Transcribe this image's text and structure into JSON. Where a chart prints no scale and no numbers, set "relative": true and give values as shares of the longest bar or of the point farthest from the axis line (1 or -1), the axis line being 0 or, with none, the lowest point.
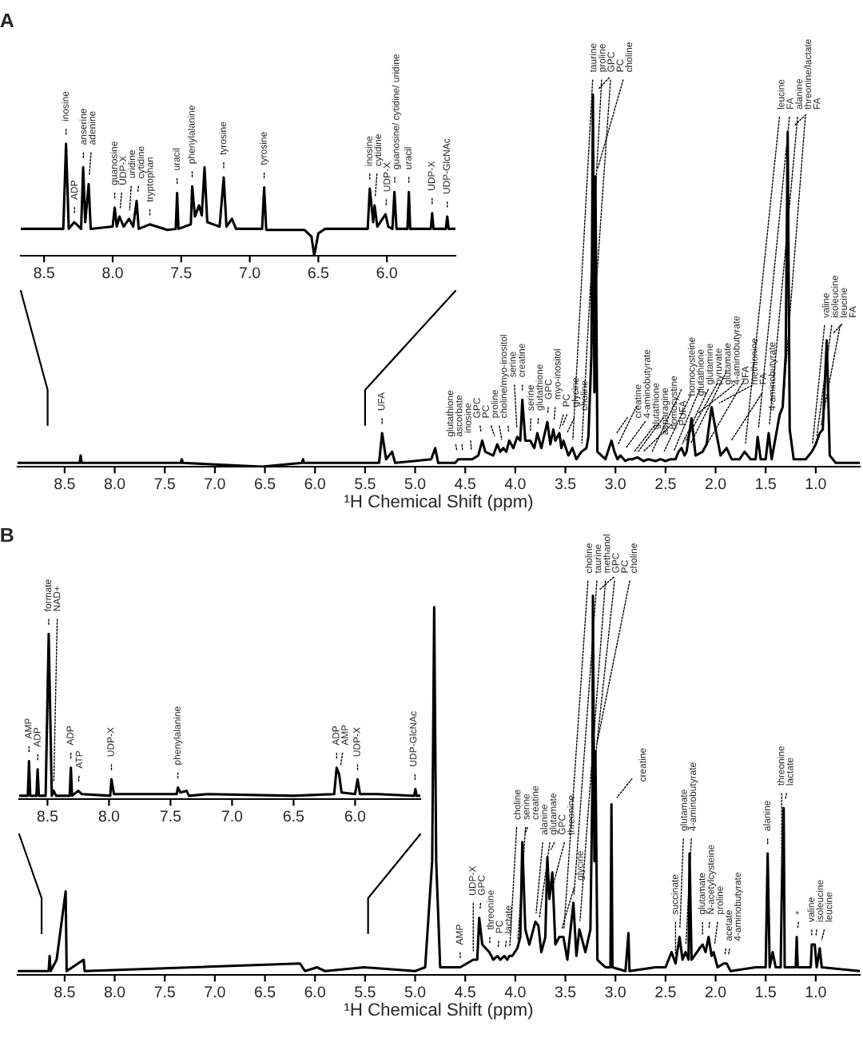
{
  "chart_data": [
    {
      "type": "line",
      "relative": true,
      "xlim": [
        8.67,
        5.5
      ],
      "xticks": [
        8.5,
        {
          "value": 8,
          "label": "8.0"
        },
        7.5,
        {
          "value": 7,
          "label": "7.0"
        },
        6.5,
        {
          "value": 6,
          "label": "6.0"
        }
      ],
      "series": [
        {
          "color": "#000000",
          "x": [
            8.67,
            8.36,
            8.34,
            8.32,
            8.28,
            8.23,
            8.215,
            8.2,
            8.175,
            8.16,
            8.0,
            7.985,
            7.97,
            7.95,
            7.92,
            7.88,
            7.85,
            7.825,
            7.81,
            7.73,
            7.6,
            7.54,
            7.53,
            7.52,
            7.43,
            7.42,
            7.4,
            7.37,
            7.35,
            7.33,
            7.31,
            7.22,
            7.19,
            7.17,
            7.13,
            7.1,
            6.91,
            6.895,
            6.88,
            6.6,
            6.55,
            6.53,
            6.5,
            6.45,
            6.14,
            6.125,
            6.1,
            6.09,
            6.07,
            6.01,
            5.99,
            5.96,
            5.945,
            5.93,
            5.85,
            5.84,
            5.83,
            5.68,
            5.67,
            5.66,
            5.57,
            5.56,
            5.55,
            5.5
          ],
          "values": [
            0.24,
            0.24,
            1.0,
            0.24,
            0.3,
            0.24,
            0.79,
            0.3,
            0.64,
            0.24,
            0.26,
            0.43,
            0.26,
            0.35,
            0.26,
            0.33,
            0.26,
            0.49,
            0.24,
            0.28,
            0.23,
            0.24,
            0.56,
            0.24,
            0.28,
            0.62,
            0.35,
            0.45,
            0.36,
            0.79,
            0.3,
            0.26,
            0.7,
            0.26,
            0.33,
            0.24,
            0.24,
            0.61,
            0.23,
            0.23,
            0.17,
            0.0,
            0.2,
            0.24,
            0.24,
            0.6,
            0.3,
            0.45,
            0.26,
            0.37,
            0.26,
            0.24,
            0.57,
            0.24,
            0.24,
            0.57,
            0.24,
            0.24,
            0.38,
            0.24,
            0.24,
            0.35,
            0.24,
            0.24
          ]
        }
      ],
      "annotations": [
        {
          "text": "inosine",
          "x": 8.34,
          "y": 1.0
        },
        {
          "text": "ADP",
          "x": 8.28,
          "y": 0.3
        },
        {
          "text": "anserine",
          "x": 8.215,
          "y": 0.79
        },
        {
          "text": "adenine",
          "x": 8.175,
          "y": 0.64
        },
        {
          "text": "guanosine",
          "x": 7.985,
          "y": 0.43
        },
        {
          "text": "UDP-X",
          "x": 7.95,
          "y": 0.35
        },
        {
          "text": "uridine",
          "x": 7.88,
          "y": 0.33
        },
        {
          "text": "cytidine",
          "x": 7.825,
          "y": 0.49
        },
        {
          "text": "tryptophan",
          "x": 7.73,
          "y": 0.28
        },
        {
          "text": "uracil",
          "x": 7.53,
          "y": 0.56
        },
        {
          "text": "phenylalanine",
          "x": 7.42,
          "y": 0.62
        },
        {
          "text": "tyrosine",
          "x": 7.19,
          "y": 0.7
        },
        {
          "text": "tyrosine",
          "x": 6.895,
          "y": 0.61
        },
        {
          "text": "inosine",
          "x": 6.125,
          "y": 0.6
        },
        {
          "text": "cytidine",
          "x": 6.09,
          "y": 0.45
        },
        {
          "text": "UDP-X",
          "x": 6.01,
          "y": 0.37
        },
        {
          "text": "guanosine/ cytidine/ uridine",
          "x": 5.945,
          "y": 0.57
        },
        {
          "text": "uracil",
          "x": 5.84,
          "y": 0.57
        },
        {
          "text": "UDP-X",
          "x": 5.67,
          "y": 0.38
        },
        {
          "text": "UDP-GlcNAc",
          "x": 5.56,
          "y": 0.35
        }
      ]
    },
    {
      "type": "line",
      "relative": true,
      "title": "A",
      "xlabel": "¹H Chemical Shift (ppm)",
      "xlim": [
        8.97,
        0.56
      ],
      "xticks": [
        8.5,
        {
          "value": 8,
          "label": "8.0"
        },
        7.5,
        {
          "value": 7,
          "label": "7.0"
        },
        6.5,
        {
          "value": 6,
          "label": "6.0"
        },
        5.5,
        {
          "value": 5,
          "label": "5.0"
        },
        4.5,
        {
          "value": 4,
          "label": "4.0"
        },
        3.5,
        {
          "value": 3,
          "label": "3.0"
        },
        2.5,
        {
          "value": 2,
          "label": "2.0"
        },
        1.5,
        {
          "value": 1,
          "label": "1.0"
        }
      ],
      "series": [
        {
          "color": "#000000",
          "x": [
            8.97,
            8.35,
            8.34,
            8.33,
            7.34,
            7.33,
            7.32,
            6.53,
            6.13,
            6.12,
            6.11,
            5.36,
            5.33,
            5.29,
            5.23,
            5.2,
            4.84,
            4.8,
            4.77,
            4.6,
            4.57,
            4.52,
            4.43,
            4.37,
            4.33,
            4.3,
            4.22,
            4.18,
            4.15,
            4.12,
            4.09,
            4.06,
            4.02,
            3.98,
            3.95,
            3.93,
            3.9,
            3.85,
            3.81,
            3.78,
            3.74,
            3.68,
            3.65,
            3.62,
            3.6,
            3.58,
            3.56,
            3.54,
            3.52,
            3.47,
            3.43,
            3.39,
            3.34,
            3.29,
            3.27,
            3.24,
            3.225,
            3.21,
            3.2,
            3.18,
            3.1,
            3.04,
            3.01,
            2.98,
            2.95,
            2.9,
            2.87,
            2.83,
            2.78,
            2.72,
            2.67,
            2.6,
            2.55,
            2.5,
            2.45,
            2.4,
            2.37,
            2.34,
            2.31,
            2.29,
            2.24,
            2.2,
            2.13,
            2.09,
            2.04,
            2.0,
            1.95,
            1.89,
            1.84,
            1.76,
            1.71,
            1.65,
            1.6,
            1.58,
            1.55,
            1.5,
            1.47,
            1.44,
            1.36,
            1.33,
            1.3,
            1.28,
            1.26,
            1.22,
            1.1,
            1.04,
            1.0,
            0.96,
            0.93,
            0.89,
            0.86,
            0.8,
            0.56
          ],
          "values": [
            0.01,
            0.01,
            0.03,
            0.01,
            0.01,
            0.02,
            0.01,
            0,
            0.01,
            0.02,
            0.01,
            0.01,
            0.09,
            0.02,
            0.04,
            0.01,
            0.02,
            0.05,
            0.01,
            0.01,
            0.02,
            0.02,
            0.02,
            0.03,
            0.07,
            0.04,
            0.03,
            0.06,
            0.04,
            0.05,
            0.04,
            0.07,
            0.05,
            0.08,
            0.07,
            0.18,
            0.07,
            0.07,
            0.05,
            0.09,
            0.05,
            0.12,
            0.06,
            0.1,
            0.07,
            0.08,
            0.09,
            0.05,
            0.07,
            0.03,
            0.05,
            0.02,
            0.04,
            0.05,
            0.08,
            0.3,
            1.0,
            0.2,
            0.78,
            0.04,
            0.02,
            0.07,
            0.04,
            0.02,
            0.03,
            0.015,
            0.02,
            0.02,
            0.025,
            0.015,
            0.02,
            0.015,
            0.02,
            0.015,
            0.02,
            0.02,
            0.04,
            0.05,
            0.03,
            0.04,
            0.13,
            0.03,
            0.04,
            0.06,
            0.16,
            0.1,
            0.03,
            0.05,
            0.02,
            0.02,
            0.04,
            0.02,
            0.02,
            0.08,
            0.02,
            0.02,
            0.09,
            0.02,
            0.14,
            0.16,
            0.3,
            0.9,
            0.1,
            0.02,
            0.02,
            0.04,
            0.06,
            0.09,
            0.1,
            0.34,
            0.03,
            0.01,
            0.01
          ]
        }
      ],
      "annotations": [
        {
          "text": "UFA",
          "x": 5.33,
          "y": 0.09
        },
        {
          "text": "glutathione",
          "x": 4.57,
          "y": 0.02
        },
        {
          "text": "ascorbate",
          "x": 4.52,
          "y": 0.02
        },
        {
          "text": "inosine",
          "x": 4.43,
          "y": 0.02
        },
        {
          "text": "GPC",
          "x": 4.33,
          "y": 0.07
        },
        {
          "text": "PC",
          "x": 4.18,
          "y": 0.06
        },
        {
          "text": "proline",
          "x": 4.12,
          "y": 0.05
        },
        {
          "text": "choline/myo-inositol",
          "x": 4.06,
          "y": 0.07
        },
        {
          "text": "serine",
          "x": 3.98,
          "y": 0.08
        },
        {
          "text": "creatine",
          "x": 3.93,
          "y": 0.18
        },
        {
          "text": "serine",
          "x": 3.85,
          "y": 0.07
        },
        {
          "text": "glutathione",
          "x": 3.78,
          "y": 0.09
        },
        {
          "text": "GPC",
          "x": 3.68,
          "y": 0.12
        },
        {
          "text": "myo-inositol",
          "x": 3.62,
          "y": 0.1
        },
        {
          "text": "PC",
          "x": 3.58,
          "y": 0.08
        },
        {
          "text": "glycine",
          "x": 3.56,
          "y": 0.09
        },
        {
          "text": "choline",
          "x": 3.52,
          "y": 0.07
        },
        {
          "text": "taurine",
          "x": 3.43,
          "y": 0.05
        },
        {
          "text": "proline",
          "x": 3.34,
          "y": 0.04
        },
        {
          "text": "GPC",
          "x": 3.24,
          "y": 0.3
        },
        {
          "text": "PC",
          "x": 3.225,
          "y": 1.0
        },
        {
          "text": "choline",
          "x": 3.2,
          "y": 0.78
        },
        {
          "text": "creatine",
          "x": 3.04,
          "y": 0.07
        },
        {
          "text": "4-aminobutyrate",
          "x": 3.01,
          "y": 0.04
        },
        {
          "text": "glutathione",
          "x": 2.95,
          "y": 0.03
        },
        {
          "text": "asparagine",
          "x": 2.87,
          "y": 0.02
        },
        {
          "text": "homocystine",
          "x": 2.83,
          "y": 0.02
        },
        {
          "text": "PUFA",
          "x": 2.78,
          "y": 0.025
        },
        {
          "text": "homocysteine",
          "x": 2.67,
          "y": 0.02
        },
        {
          "text": "glutathione",
          "x": 2.55,
          "y": 0.02
        },
        {
          "text": "glutamine",
          "x": 2.45,
          "y": 0.02
        },
        {
          "text": "pyruvate",
          "x": 2.37,
          "y": 0.04
        },
        {
          "text": "glutamate",
          "x": 2.34,
          "y": 0.05
        },
        {
          "text": "4-aminobutyrate",
          "x": 2.29,
          "y": 0.04
        },
        {
          "text": "UFA",
          "x": 2.24,
          "y": 0.13
        },
        {
          "text": "methionine",
          "x": 2.13,
          "y": 0.04
        },
        {
          "text": "FA",
          "x": 2.04,
          "y": 0.16
        },
        {
          "text": "4-aminobutyrate",
          "x": 1.89,
          "y": 0.05
        },
        {
          "text": "leucine",
          "x": 1.71,
          "y": 0.04
        },
        {
          "text": "FA",
          "x": 1.58,
          "y": 0.08
        },
        {
          "text": "alanine",
          "x": 1.47,
          "y": 0.09
        },
        {
          "text": "threonine/lactate",
          "x": 1.33,
          "y": 0.16
        },
        {
          "text": "FA",
          "x": 1.28,
          "y": 0.9
        },
        {
          "text": "valine",
          "x": 1.04,
          "y": 0.04
        },
        {
          "text": "isoleucine",
          "x": 1.0,
          "y": 0.06
        },
        {
          "text": "leucine",
          "x": 0.96,
          "y": 0.09
        },
        {
          "text": "FA",
          "x": 0.89,
          "y": 0.34
        }
      ]
    },
    {
      "type": "line",
      "relative": true,
      "xlim": [
        8.73,
        5.47
      ],
      "xticks": [
        8.5,
        {
          "value": 8,
          "label": "8.0"
        },
        7.5,
        {
          "value": 7,
          "label": "7.0"
        },
        6.5,
        {
          "value": 6,
          "label": "6.0"
        }
      ],
      "series": [
        {
          "color": "#000000",
          "x": [
            8.73,
            8.66,
            8.65,
            8.64,
            8.59,
            8.58,
            8.57,
            8.515,
            8.49,
            8.465,
            8.45,
            8.43,
            8.32,
            8.31,
            8.3,
            8.25,
            8.22,
            7.99,
            7.98,
            7.96,
            7.45,
            7.44,
            7.42,
            7.37,
            7.35,
            7.2,
            6.5,
            6.17,
            6.15,
            6.13,
            6.11,
            6.0,
            5.98,
            5.96,
            5.82,
            5.52,
            5.51,
            5.5,
            5.47
          ],
          "values": [
            0.02,
            0.02,
            0.23,
            0.02,
            0.02,
            0.18,
            0.02,
            0.02,
            1.0,
            0.02,
            0.05,
            0.02,
            0.02,
            0.19,
            0.02,
            0.05,
            0.03,
            0.02,
            0.12,
            0.03,
            0.03,
            0.07,
            0.04,
            0.05,
            0.02,
            0.03,
            0.02,
            0.03,
            0.19,
            0.15,
            0.04,
            0.03,
            0.12,
            0.03,
            0.03,
            0.02,
            0.06,
            0.02,
            0.02
          ]
        }
      ],
      "annotations": [
        {
          "text": "AMP",
          "x": 8.65,
          "y": 0.23
        },
        {
          "text": "ADP",
          "x": 8.58,
          "y": 0.18
        },
        {
          "text": "formate",
          "x": 8.49,
          "y": 1.0
        },
        {
          "text": "NAD+",
          "x": 8.45,
          "y": 0.05
        },
        {
          "text": "ADP",
          "x": 8.31,
          "y": 0.19
        },
        {
          "text": "ATP",
          "x": 8.25,
          "y": 0.05
        },
        {
          "text": "UDP-X",
          "x": 7.98,
          "y": 0.12
        },
        {
          "text": "phenylalanine",
          "x": 7.44,
          "y": 0.07
        },
        {
          "text": "ADP",
          "x": 6.15,
          "y": 0.19
        },
        {
          "text": "AMP",
          "x": 6.13,
          "y": 0.15
        },
        {
          "text": "UDP-X",
          "x": 5.98,
          "y": 0.12
        },
        {
          "text": "UDP-GlcNAc",
          "x": 5.51,
          "y": 0.06
        }
      ]
    },
    {
      "type": "line",
      "relative": true,
      "title": "B",
      "xlabel": "¹H Chemical Shift (ppm)",
      "xlim": [
        8.97,
        0.56
      ],
      "xticks": [
        8.5,
        {
          "value": 8,
          "label": "8.0"
        },
        7.5,
        {
          "value": 7,
          "label": "7.0"
        },
        6.5,
        {
          "value": 6,
          "label": "6.0"
        },
        5.5,
        {
          "value": 5,
          "label": "5.0"
        },
        4.5,
        {
          "value": 4,
          "label": "4.0"
        },
        3.5,
        {
          "value": 3,
          "label": "3.0"
        },
        2.5,
        {
          "value": 2,
          "label": "2.0"
        },
        1.5,
        {
          "value": 1,
          "label": "1.0"
        }
      ],
      "series": [
        {
          "color": "#000000",
          "x": [
            8.97,
            8.66,
            8.65,
            8.64,
            8.58,
            8.49,
            8.48,
            8.31,
            8.3,
            6.15,
            6.1,
            5.98,
            5.9,
            5.51,
            5.0,
            4.9,
            4.83,
            4.81,
            4.79,
            4.75,
            4.6,
            4.55,
            4.42,
            4.38,
            4.36,
            4.33,
            4.26,
            4.22,
            4.18,
            4.15,
            4.11,
            4.08,
            4.06,
            4.03,
            3.98,
            3.95,
            3.93,
            3.9,
            3.86,
            3.8,
            3.77,
            3.74,
            3.7,
            3.68,
            3.66,
            3.63,
            3.6,
            3.56,
            3.52,
            3.48,
            3.42,
            3.39,
            3.36,
            3.3,
            3.25,
            3.23,
            3.225,
            3.21,
            3.2,
            3.18,
            3.1,
            3.05,
            3.04,
            3.03,
            2.9,
            2.87,
            2.86,
            2.6,
            2.5,
            2.44,
            2.4,
            2.36,
            2.33,
            2.3,
            2.27,
            2.26,
            2.24,
            2.16,
            2.13,
            2.1,
            2.07,
            2.04,
            2.02,
            1.98,
            1.92,
            1.89,
            1.85,
            1.6,
            1.5,
            1.48,
            1.46,
            1.43,
            1.4,
            1.35,
            1.34,
            1.32,
            1.31,
            1.2,
            1.19,
            1.18,
            1.05,
            1.04,
            1.01,
            0.99,
            0.96,
            0.94,
            0.56
          ],
          "values": [
            0.01,
            0.01,
            0.05,
            0.01,
            0.04,
            0.22,
            0.01,
            0.04,
            0.01,
            0.03,
            0.01,
            0.02,
            0.01,
            0.02,
            0.01,
            0.02,
            0.3,
            0.97,
            0.3,
            0.02,
            0.02,
            0.02,
            0.04,
            0.04,
            0.15,
            0.08,
            0.06,
            0.04,
            0.05,
            0.04,
            0.05,
            0.04,
            0.05,
            0.05,
            0.07,
            0.1,
            0.35,
            0.12,
            0.08,
            0.14,
            0.13,
            0.06,
            0.1,
            0.31,
            0.2,
            0.27,
            0.08,
            0.1,
            0.1,
            0.04,
            0.19,
            0.05,
            0.12,
            0.06,
            0.12,
            0.5,
            1.0,
            0.3,
            0.59,
            0.04,
            0.02,
            0.02,
            0.45,
            0.02,
            0.01,
            0.11,
            0.01,
            0.02,
            0.02,
            0.06,
            0.03,
            0.1,
            0.04,
            0.06,
            0.04,
            0.32,
            0.04,
            0.07,
            0.08,
            0.06,
            0.1,
            0.05,
            0.06,
            0.02,
            0.03,
            0.03,
            0.01,
            0.02,
            0.02,
            0.32,
            0.02,
            0.06,
            0.02,
            0.02,
            0.2,
            0.44,
            0.02,
            0.02,
            0.1,
            0.02,
            0.02,
            0.08,
            0.08,
            0.02,
            0.07,
            0.02,
            0.01
          ]
        }
      ],
      "annotations": [
        {
          "text": "AMP",
          "x": 4.55,
          "y": 0.02
        },
        {
          "text": "UDP-X",
          "x": 4.42,
          "y": 0.04
        },
        {
          "text": "GPC",
          "x": 4.36,
          "y": 0.15
        },
        {
          "text": "threonine",
          "x": 4.26,
          "y": 0.06
        },
        {
          "text": "PC",
          "x": 4.18,
          "y": 0.05
        },
        {
          "text": "lactate",
          "x": 4.11,
          "y": 0.05
        },
        {
          "text": "choline",
          "x": 4.06,
          "y": 0.05
        },
        {
          "text": "serine",
          "x": 3.98,
          "y": 0.07
        },
        {
          "text": "creatine",
          "x": 3.93,
          "y": 0.35
        },
        {
          "text": "alanine",
          "x": 3.8,
          "y": 0.14
        },
        {
          "text": "glutamate",
          "x": 3.77,
          "y": 0.13
        },
        {
          "text": "GPC",
          "x": 3.68,
          "y": 0.31
        },
        {
          "text": "threonine",
          "x": 3.66,
          "y": 0.2
        },
        {
          "text": "glycine",
          "x": 3.56,
          "y": 0.1
        },
        {
          "text": "choline",
          "x": 3.52,
          "y": 0.1
        },
        {
          "text": "taurine",
          "x": 3.42,
          "y": 0.19
        },
        {
          "text": "methanol",
          "x": 3.36,
          "y": 0.12
        },
        {
          "text": "GPC",
          "x": 3.23,
          "y": 0.5
        },
        {
          "text": "PC",
          "x": 3.225,
          "y": 1.0
        },
        {
          "text": "choline",
          "x": 3.2,
          "y": 0.59
        },
        {
          "text": "creatine",
          "x": 3.04,
          "y": 0.45
        },
        {
          "text": "succinate",
          "x": 2.4,
          "y": 0.03
        },
        {
          "text": "glutamate",
          "x": 2.36,
          "y": 0.1
        },
        {
          "text": "4-aminobutyrate",
          "x": 2.3,
          "y": 0.06
        },
        {
          "text": "glutamate",
          "x": 2.13,
          "y": 0.08
        },
        {
          "text": "N-acetylcysteine",
          "x": 2.07,
          "y": 0.1
        },
        {
          "text": "proline",
          "x": 2.02,
          "y": 0.06
        },
        {
          "text": "acetate",
          "x": 1.92,
          "y": 0.03
        },
        {
          "text": "4-aminobutyrate",
          "x": 1.89,
          "y": 0.03
        },
        {
          "text": "alanine",
          "x": 1.48,
          "y": 0.32
        },
        {
          "text": "threonine",
          "x": 1.34,
          "y": 0.2
        },
        {
          "text": "lactate",
          "x": 1.32,
          "y": 0.44
        },
        {
          "text": "*",
          "x": 1.19,
          "y": 0.1
        },
        {
          "text": "valine",
          "x": 1.04,
          "y": 0.08
        },
        {
          "text": "isoleucine",
          "x": 1.01,
          "y": 0.08
        },
        {
          "text": "leucine",
          "x": 0.96,
          "y": 0.07
        }
      ]
    }
  ]
}
